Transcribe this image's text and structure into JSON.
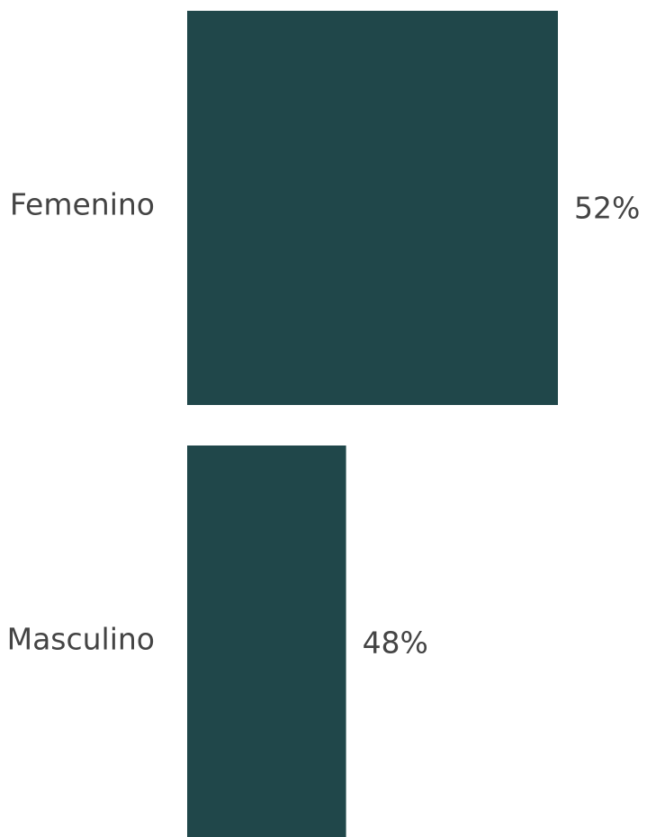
{
  "chart_data": {
    "type": "bar",
    "orientation": "horizontal",
    "categories": [
      "Femenino",
      "Masculino"
    ],
    "values": [
      52,
      48
    ],
    "value_labels": [
      "52%",
      "48%"
    ],
    "color": "#20474a",
    "xlim": [
      45,
      52
    ]
  }
}
